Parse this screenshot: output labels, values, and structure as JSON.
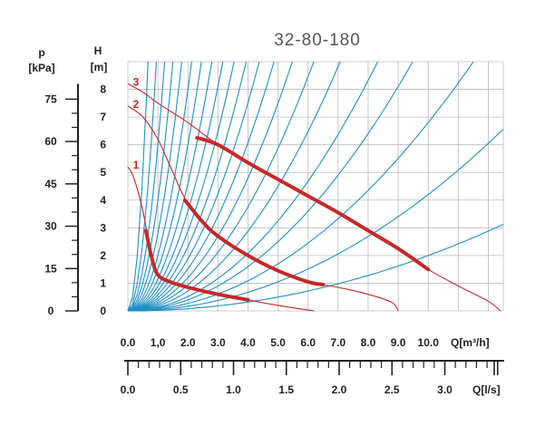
{
  "chart_data": {
    "type": "line",
    "title": "32-80-180",
    "colors": {
      "grid": "#bbbbbb",
      "system": "#1f8fc4",
      "pump": "#c62828",
      "op": "#c62828",
      "axis": "#222222"
    },
    "left_axis": {
      "label_top": "p",
      "label_unit": "[kPa]",
      "ticks": [
        "75",
        "60",
        "45",
        "30",
        "15",
        "0"
      ],
      "tick_values": [
        75,
        60,
        45,
        30,
        15,
        0
      ]
    },
    "y_axis": {
      "label_top": "H",
      "label_unit": "[m]",
      "ticks": [
        "8",
        "7",
        "6",
        "5",
        "4",
        "3",
        "2",
        "1",
        "0"
      ],
      "tick_values": [
        8,
        7,
        6,
        5,
        4,
        3,
        2,
        1,
        0
      ],
      "range": [
        0,
        9
      ]
    },
    "x_axis_m3h": {
      "label": "Q[m³/h]",
      "ticks": [
        "0.0",
        "1,0",
        "2.0",
        "3.0",
        "4.0",
        "5.0",
        "6.0",
        "7.0",
        "8.0",
        "9.0",
        "10.0"
      ],
      "tick_values": [
        0,
        1,
        2,
        3,
        4,
        5,
        6,
        7,
        8,
        9,
        10
      ],
      "range": [
        0,
        12.5
      ]
    },
    "x_axis_ls": {
      "label": "Q[l/s]",
      "ticks": [
        "0.0",
        "0.5",
        "1.0",
        "1.5",
        "2.0",
        "2.5",
        "3.0"
      ],
      "tick_values": [
        0,
        0.5,
        1.0,
        1.5,
        2.0,
        2.5,
        3.0
      ],
      "range": [
        0,
        3.5
      ]
    },
    "system_curve_k": [
      20,
      10,
      6,
      4,
      2.8,
      2,
      1.5,
      1.15,
      0.9,
      0.72,
      0.58,
      0.47,
      0.38,
      0.3,
      0.235,
      0.18,
      0.13,
      0.1,
      0.068,
      0.042,
      0.02
    ],
    "series": [
      {
        "name": "1",
        "x": [
          0,
          0.2,
          0.5,
          0.8,
          1.0,
          1.4,
          2.0,
          3.0,
          4.0,
          5.0,
          6.2
        ],
        "y": [
          5.2,
          4.8,
          3.6,
          1.9,
          1.3,
          1.05,
          0.85,
          0.6,
          0.4,
          0.2,
          0.0
        ]
      },
      {
        "name": "2",
        "x": [
          0,
          0.5,
          1.0,
          1.5,
          2.0,
          3.0,
          4.0,
          5.0,
          6.0,
          7.0,
          8.0,
          8.8,
          9.0
        ],
        "y": [
          7.4,
          7.0,
          6.2,
          5.0,
          3.9,
          2.7,
          2.0,
          1.45,
          1.05,
          0.85,
          0.6,
          0.3,
          0.0
        ]
      },
      {
        "name": "3",
        "x": [
          0,
          0.5,
          1.0,
          2.0,
          3.0,
          4.0,
          5.0,
          6.0,
          7.0,
          8.0,
          9.0,
          10.0,
          11.0,
          12.0,
          12.4
        ],
        "y": [
          8.2,
          7.9,
          7.5,
          6.8,
          6.0,
          5.35,
          4.75,
          4.15,
          3.55,
          2.9,
          2.25,
          1.5,
          0.9,
          0.35,
          0.0
        ]
      }
    ],
    "operating_ranges": [
      {
        "series": "1",
        "x": [
          0.6,
          0.8,
          1.0,
          1.4,
          2.0,
          3.0,
          4.0
        ],
        "y": [
          2.9,
          1.9,
          1.3,
          1.05,
          0.85,
          0.6,
          0.4
        ]
      },
      {
        "series": "2",
        "x": [
          1.9,
          2.5,
          3.0,
          4.0,
          5.0,
          6.0,
          6.5
        ],
        "y": [
          4.0,
          3.2,
          2.7,
          2.0,
          1.45,
          1.05,
          0.95
        ]
      },
      {
        "series": "3",
        "x": [
          2.3,
          3.0,
          4.0,
          5.0,
          6.0,
          7.0,
          8.0,
          9.0,
          10.0
        ],
        "y": [
          6.25,
          6.0,
          5.35,
          4.75,
          4.15,
          3.55,
          2.9,
          2.25,
          1.5
        ]
      }
    ]
  }
}
